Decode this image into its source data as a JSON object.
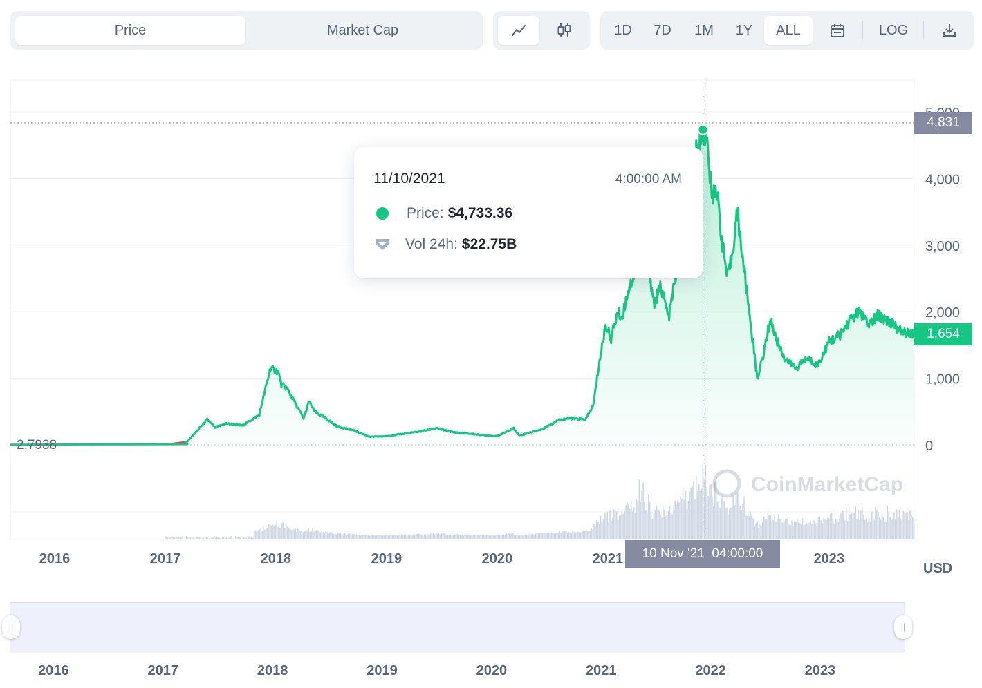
{
  "toolbar": {
    "view_tabs": [
      {
        "label": "Price",
        "active": true
      },
      {
        "label": "Market Cap",
        "active": false
      }
    ],
    "chart_type_buttons": [
      {
        "icon": "line-chart-icon",
        "active": true
      },
      {
        "icon": "candlestick-icon",
        "active": false
      }
    ],
    "ranges": [
      {
        "label": "1D",
        "active": false
      },
      {
        "label": "7D",
        "active": false
      },
      {
        "label": "1M",
        "active": false
      },
      {
        "label": "1Y",
        "active": false
      },
      {
        "label": "ALL",
        "active": true
      }
    ],
    "calendar_icon": "calendar-icon",
    "log_label": "LOG",
    "download_icon": "download-icon"
  },
  "tooltip": {
    "date": "11/10/2021",
    "time": "4:00:00 AM",
    "price_label": "Price:",
    "price_value": "$4,733.36",
    "volume_label": "Vol 24h:",
    "volume_value": "$22.75B"
  },
  "crosshair_time_label": "10 Nov '21  04:00:00",
  "price_tags": {
    "high": "4,831",
    "current": "1,654",
    "start": "2.7938"
  },
  "currency_label": "USD",
  "watermark": "CoinMarketCap",
  "colors": {
    "up": "#16c784",
    "down": "#ea3943",
    "axis_text": "#58667e",
    "tag_gray": "#858ca2"
  },
  "chart_data": {
    "type": "line",
    "title": "",
    "xlabel": "",
    "ylabel": "",
    "ylim": [
      0,
      5000
    ],
    "yticks": [
      0,
      1000,
      2000,
      3000,
      4000,
      5000
    ],
    "ytick_labels": [
      "0",
      "1,000",
      "2,000",
      "3,000",
      "4,000",
      "5,000"
    ],
    "xticks": [
      "2016",
      "2017",
      "2018",
      "2019",
      "2020",
      "2021",
      "2022",
      "2023"
    ],
    "xtick_values": [
      2016.0,
      2017.0,
      2018.0,
      2019.0,
      2020.0,
      2021.0,
      2022.0,
      2023.0
    ],
    "xlim": [
      2015.6,
      2023.77
    ],
    "series": [
      {
        "values_t": [
          2015.6,
          2016.0,
          2016.5,
          2017.0,
          2017.2,
          2017.38,
          2017.45,
          2017.55,
          2017.7,
          2017.85,
          2017.95,
          2018.02,
          2018.05,
          2018.1,
          2018.15,
          2018.25,
          2018.3,
          2018.35,
          2018.45,
          2018.55,
          2018.7,
          2018.85,
          2019.0,
          2019.3,
          2019.45,
          2019.6,
          2019.85,
          2020.0,
          2020.15,
          2020.2,
          2020.4,
          2020.55,
          2020.65,
          2020.8,
          2020.87,
          2020.92,
          2020.98,
          2021.03,
          2021.09,
          2021.13,
          2021.18,
          2021.25,
          2021.3,
          2021.36,
          2021.42,
          2021.48,
          2021.55,
          2021.62,
          2021.68,
          2021.74,
          2021.8,
          2021.86,
          2021.9,
          2021.94,
          2021.98,
          2022.03,
          2022.08,
          2022.12,
          2022.17,
          2022.22,
          2022.28,
          2022.35,
          2022.4,
          2022.47,
          2022.52,
          2022.6,
          2022.7,
          2022.8,
          2022.9,
          2023.0,
          2023.1,
          2023.2,
          2023.28,
          2023.35,
          2023.45,
          2023.55,
          2023.65,
          2023.77
        ],
        "values": [
          2.79,
          3,
          10,
          8,
          50,
          380,
          260,
          320,
          290,
          450,
          1150,
          1100,
          900,
          850,
          700,
          400,
          650,
          500,
          400,
          280,
          220,
          120,
          130,
          200,
          250,
          190,
          150,
          130,
          250,
          140,
          230,
          370,
          400,
          380,
          600,
          1200,
          1800,
          1600,
          2000,
          1900,
          2300,
          2600,
          4100,
          2800,
          2100,
          2400,
          1900,
          2600,
          3400,
          3300,
          4400,
          4733,
          4500,
          3700,
          3900,
          3100,
          2500,
          2800,
          3500,
          2800,
          2000,
          1000,
          1300,
          1900,
          1600,
          1300,
          1150,
          1300,
          1200,
          1550,
          1650,
          1900,
          2000,
          1800,
          1950,
          1850,
          1700,
          1654
        ]
      }
    ],
    "pre_2017_color": "#ea3943",
    "highlight": {
      "date": "11/10/2021",
      "value": 4733.36
    },
    "high_line": 4831
  },
  "navigator": {
    "xticks": [
      "2016",
      "2017",
      "2018",
      "2019",
      "2020",
      "2021",
      "2022",
      "2023"
    ]
  }
}
